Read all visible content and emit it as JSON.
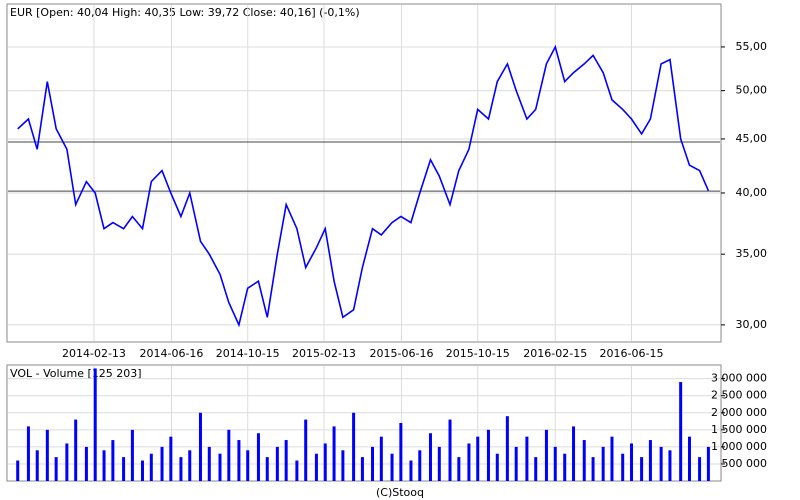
{
  "chart_data": [
    {
      "type": "line",
      "title": "EUR [Open: 40,04  High: 40,35  Low: 39,72  Close: 40,16] (-0,1%)",
      "log_scale": true,
      "grid": true,
      "color": "#0000ff",
      "x": [
        "2013-10-15",
        "2013-11-01",
        "2013-11-15",
        "2013-12-01",
        "2013-12-15",
        "2014-01-01",
        "2014-01-15",
        "2014-02-01",
        "2014-02-15",
        "2014-03-01",
        "2014-03-15",
        "2014-04-01",
        "2014-04-15",
        "2014-05-01",
        "2014-05-15",
        "2014-06-01",
        "2014-06-15",
        "2014-07-01",
        "2014-07-15",
        "2014-08-01",
        "2014-08-15",
        "2014-09-01",
        "2014-09-15",
        "2014-10-01",
        "2014-10-15",
        "2014-11-01",
        "2014-11-15",
        "2014-12-01",
        "2014-12-15",
        "2015-01-01",
        "2015-01-15",
        "2015-02-01",
        "2015-02-15",
        "2015-03-01",
        "2015-03-15",
        "2015-04-01",
        "2015-04-15",
        "2015-05-01",
        "2015-05-15",
        "2015-06-01",
        "2015-06-15",
        "2015-07-01",
        "2015-07-15",
        "2015-08-01",
        "2015-08-15",
        "2015-09-01",
        "2015-09-15",
        "2015-10-01",
        "2015-10-15",
        "2015-11-01",
        "2015-11-15",
        "2015-12-01",
        "2015-12-15",
        "2016-01-01",
        "2016-01-15",
        "2016-02-01",
        "2016-02-15",
        "2016-03-01",
        "2016-03-15",
        "2016-04-01",
        "2016-04-15",
        "2016-05-01",
        "2016-05-15",
        "2016-06-01",
        "2016-06-15",
        "2016-07-01",
        "2016-07-15",
        "2016-08-01",
        "2016-08-15",
        "2016-09-01",
        "2016-09-15",
        "2016-10-01",
        "2016-10-15"
      ],
      "values": [
        46,
        47,
        44,
        51,
        46,
        44,
        39,
        41,
        40,
        37,
        37.5,
        37,
        38,
        37,
        41,
        42,
        40,
        38,
        40,
        36,
        35,
        33.5,
        31.5,
        30,
        32.5,
        33,
        30.5,
        35,
        39,
        37,
        34,
        35.5,
        37,
        33,
        30.5,
        31,
        34,
        37,
        36.5,
        37.5,
        38,
        37.5,
        40,
        43,
        41.5,
        39,
        42,
        44,
        48,
        47,
        51,
        53,
        50,
        47,
        48,
        53,
        55,
        51,
        52,
        53,
        54,
        52,
        49,
        48,
        47,
        45.5,
        47,
        53,
        53.5,
        45,
        42.5,
        42,
        40.2
      ],
      "reference_lines": [
        44.7,
        40.16
      ],
      "xlim": [
        "2013-09-28",
        "2016-11-04"
      ],
      "xticks": [
        "2014-02-13",
        "2014-06-16",
        "2014-10-15",
        "2015-02-13",
        "2015-06-16",
        "2015-10-15",
        "2016-02-15",
        "2016-06-15"
      ],
      "ylim": [
        28.9,
        60.4
      ],
      "yticks": [
        {
          "value": 30,
          "label": "30,00"
        },
        {
          "value": 35,
          "label": "35,00"
        },
        {
          "value": 40,
          "label": "40,00"
        },
        {
          "value": 45,
          "label": "45,00"
        },
        {
          "value": 50,
          "label": "50,00"
        },
        {
          "value": 55,
          "label": "55,00"
        }
      ]
    },
    {
      "type": "bar",
      "title": "VOL - Volume [125 203]",
      "grid": true,
      "color": "#0000ff",
      "x": [
        "2013-10-15",
        "2013-11-01",
        "2013-11-15",
        "2013-12-01",
        "2013-12-15",
        "2014-01-01",
        "2014-01-15",
        "2014-02-01",
        "2014-02-15",
        "2014-03-01",
        "2014-03-15",
        "2014-04-01",
        "2014-04-15",
        "2014-05-01",
        "2014-05-15",
        "2014-06-01",
        "2014-06-15",
        "2014-07-01",
        "2014-07-15",
        "2014-08-01",
        "2014-08-15",
        "2014-09-01",
        "2014-09-15",
        "2014-10-01",
        "2014-10-15",
        "2014-11-01",
        "2014-11-15",
        "2014-12-01",
        "2014-12-15",
        "2015-01-01",
        "2015-01-15",
        "2015-02-01",
        "2015-02-15",
        "2015-03-01",
        "2015-03-15",
        "2015-04-01",
        "2015-04-15",
        "2015-05-01",
        "2015-05-15",
        "2015-06-01",
        "2015-06-15",
        "2015-07-01",
        "2015-07-15",
        "2015-08-01",
        "2015-08-15",
        "2015-09-01",
        "2015-09-15",
        "2015-10-01",
        "2015-10-15",
        "2015-11-01",
        "2015-11-15",
        "2015-12-01",
        "2015-12-15",
        "2016-01-01",
        "2016-01-15",
        "2016-02-01",
        "2016-02-15",
        "2016-03-01",
        "2016-03-15",
        "2016-04-01",
        "2016-04-15",
        "2016-05-01",
        "2016-05-15",
        "2016-06-01",
        "2016-06-15",
        "2016-07-01",
        "2016-07-15",
        "2016-08-01",
        "2016-08-15",
        "2016-09-01",
        "2016-09-15",
        "2016-10-01",
        "2016-10-15"
      ],
      "values": [
        600000,
        1600000,
        900000,
        1500000,
        700000,
        1100000,
        1800000,
        1000000,
        3300000,
        900000,
        1200000,
        700000,
        1500000,
        600000,
        800000,
        1000000,
        1300000,
        700000,
        900000,
        2000000,
        1000000,
        800000,
        1500000,
        1200000,
        900000,
        1400000,
        700000,
        1000000,
        1200000,
        600000,
        1800000,
        800000,
        1100000,
        1600000,
        900000,
        2000000,
        700000,
        1000000,
        1300000,
        800000,
        1700000,
        600000,
        900000,
        1400000,
        1000000,
        1800000,
        700000,
        1100000,
        1300000,
        1500000,
        800000,
        1900000,
        1000000,
        1300000,
        700000,
        1500000,
        1000000,
        800000,
        1600000,
        1200000,
        700000,
        1000000,
        1300000,
        800000,
        1100000,
        700000,
        1200000,
        1000000,
        900000,
        2900000,
        1300000,
        700000,
        1000000
      ],
      "xlim": [
        "2013-09-28",
        "2016-11-04"
      ],
      "ylim": [
        0,
        3400000
      ],
      "yticks": [
        {
          "value": 500000,
          "label": "500 000"
        },
        {
          "value": 1000000,
          "label": "1 000 000"
        },
        {
          "value": 1500000,
          "label": "1 500 000"
        },
        {
          "value": 2000000,
          "label": "2 000 000"
        },
        {
          "value": 2500000,
          "label": "2 500 000"
        },
        {
          "value": 3000000,
          "label": "3 000 000"
        }
      ]
    }
  ],
  "footer": "(C)Stooq"
}
